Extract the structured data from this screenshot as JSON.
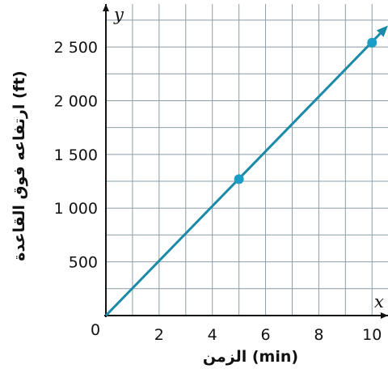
{
  "chart_data": {
    "type": "line",
    "xlabel": "الزمن (min)",
    "ylabel": "ارتفاعه فوق القاعدة (ft)",
    "x_axis_var": "x",
    "y_axis_var": "y",
    "origin_label": "0",
    "xlim": [
      0,
      10.6
    ],
    "ylim": [
      0,
      2900
    ],
    "x_ticks": [
      2,
      4,
      6,
      8,
      10
    ],
    "x_tick_labels": [
      "2",
      "4",
      "6",
      "8",
      "10"
    ],
    "y_ticks": [
      500,
      1000,
      1500,
      2000,
      2500
    ],
    "y_tick_labels": [
      "500",
      "1 000",
      "1 500",
      "2 000",
      "2 500"
    ],
    "grid": true,
    "x_grid_step": 1,
    "y_grid_step": 250,
    "series": [
      {
        "x": [
          0,
          10.6
        ],
        "y": [
          0,
          2700
        ],
        "color": "#1a8aa8",
        "arrow_end": true
      }
    ],
    "points": [
      {
        "x": 5,
        "y": 1270
      },
      {
        "x": 10,
        "y": 2540
      }
    ],
    "point_color": "#1a9ec8"
  }
}
